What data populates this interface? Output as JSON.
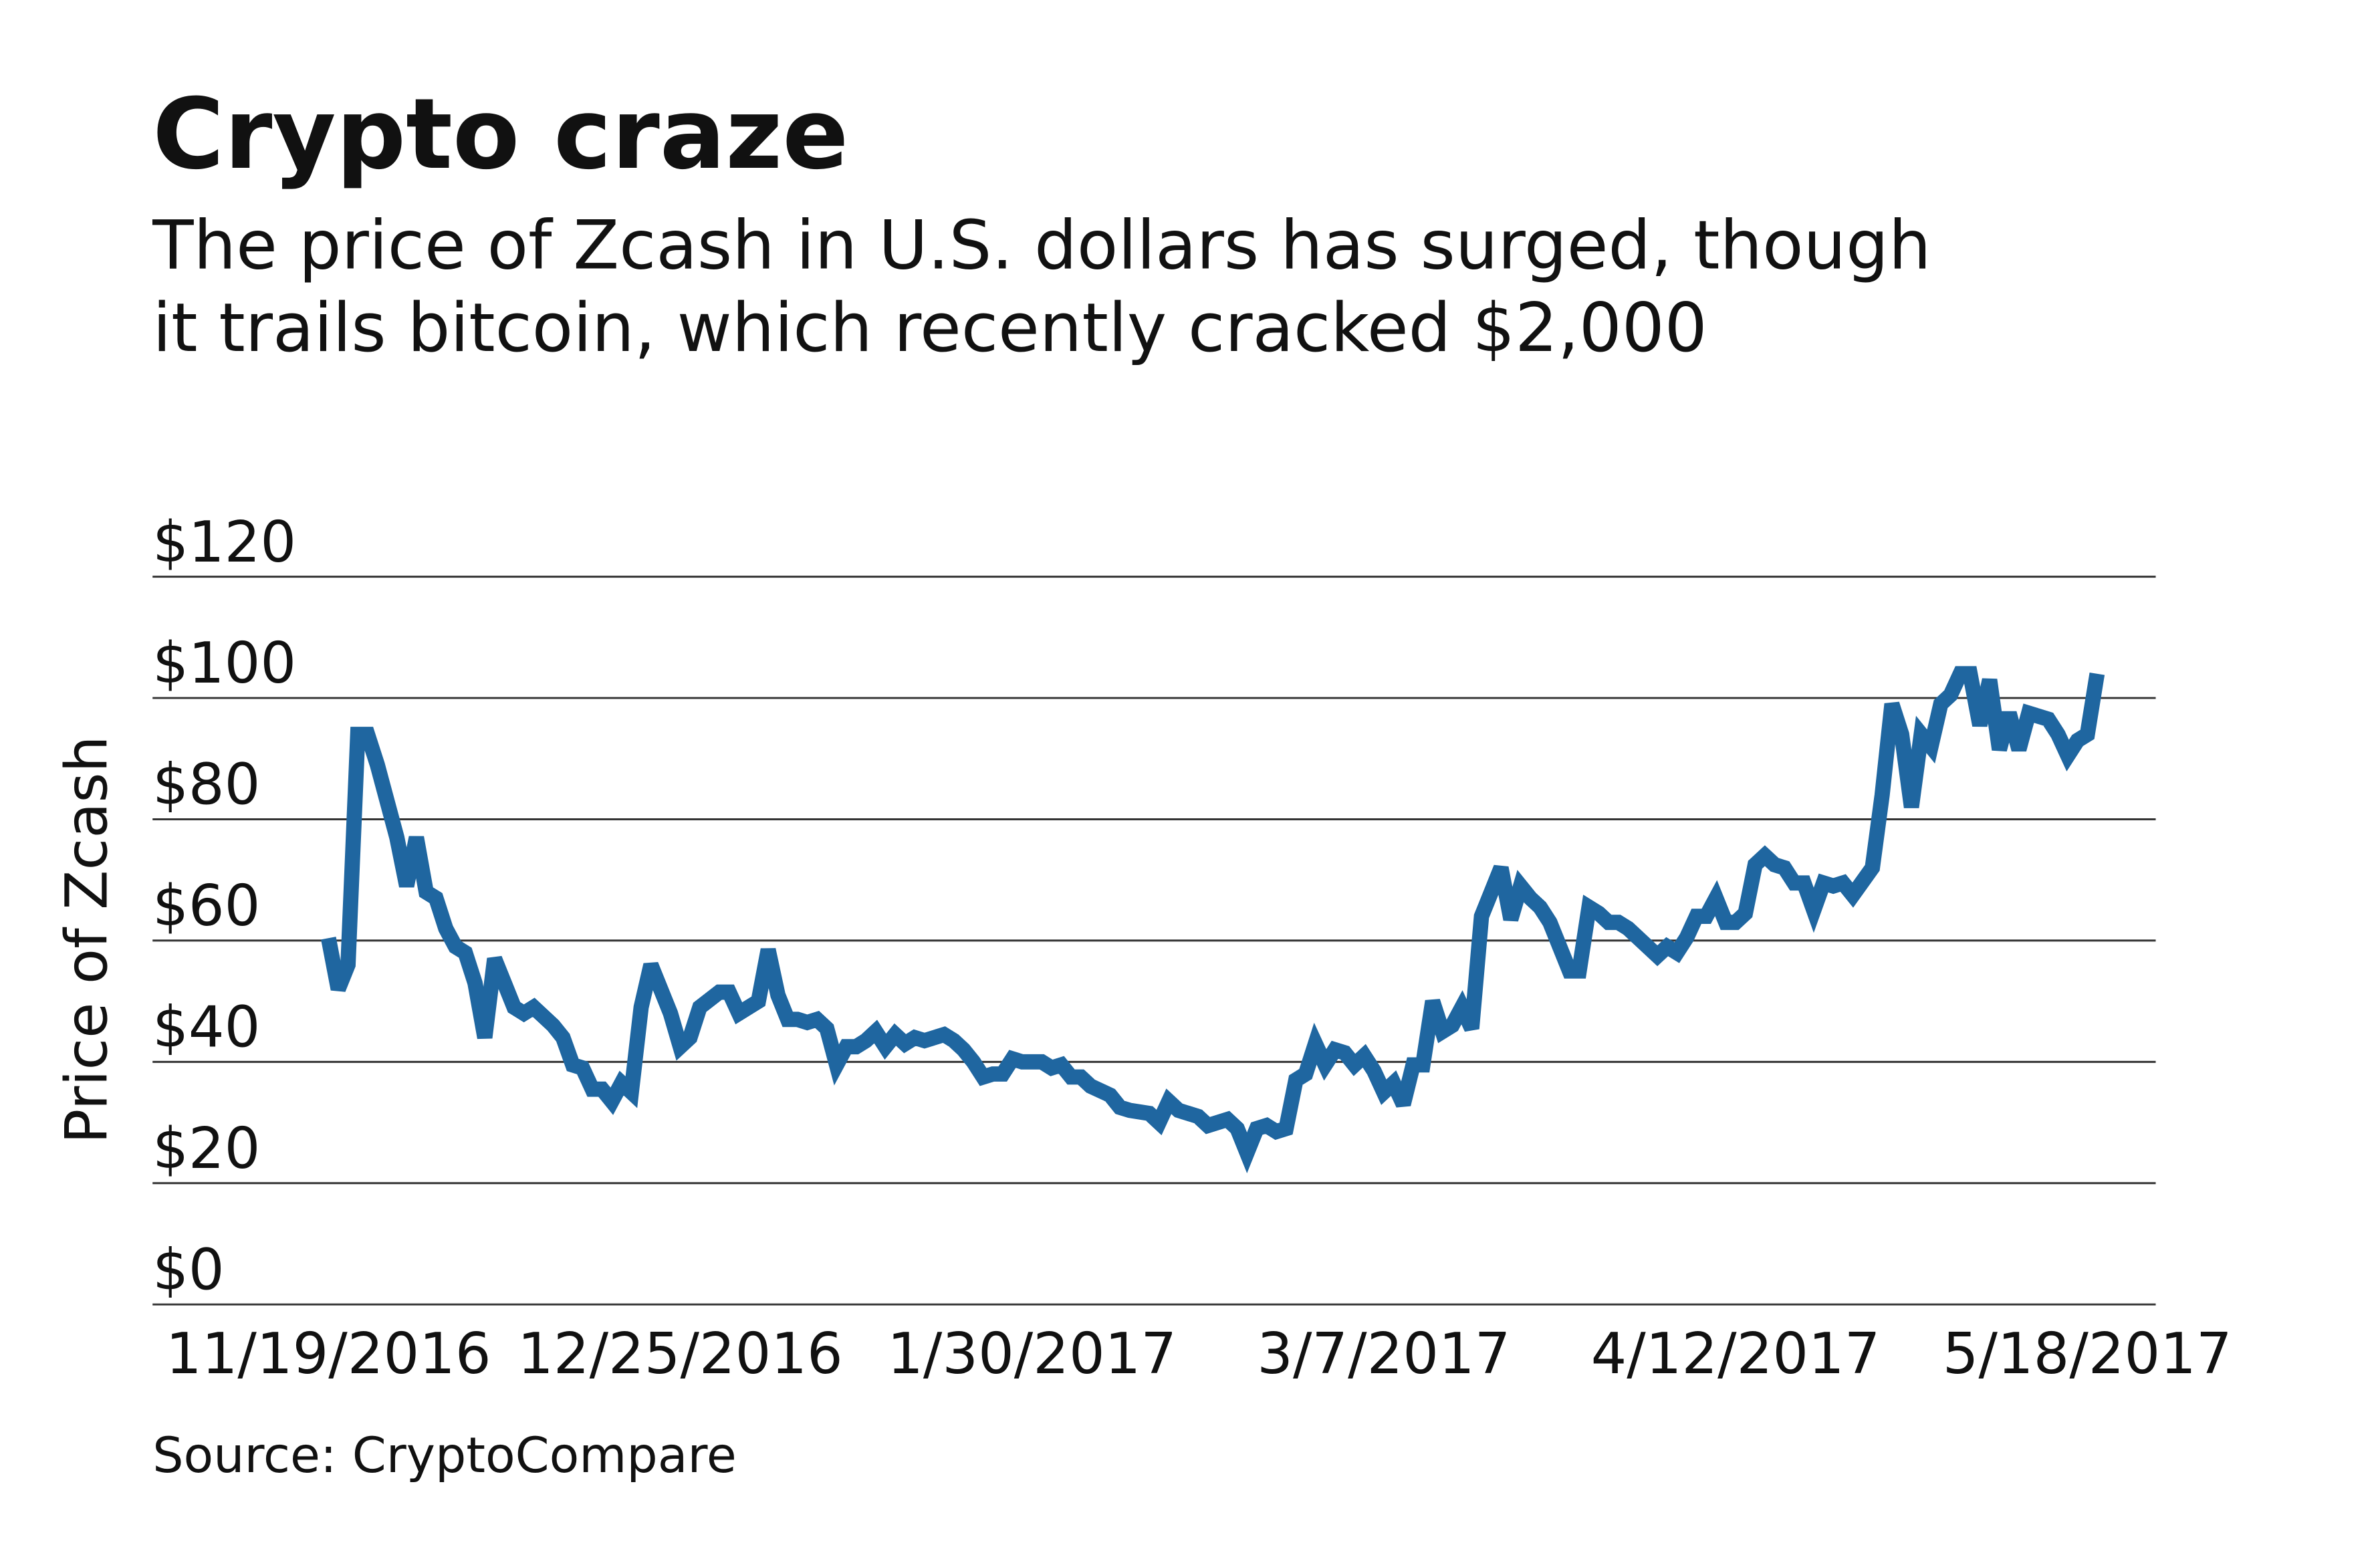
{
  "chart_data": {
    "type": "line",
    "title": "Crypto craze",
    "subtitle": [
      "The price of Zcash in U.S. dollars has surged, though",
      "it trails bitcoin, which recently cracked $2,000"
    ],
    "y_label": "Price of Zcash",
    "source": "Source: CryptoCompare",
    "color": "#1f66a0",
    "grid": true,
    "xlim": [
      "2016-11-01",
      "2017-05-25"
    ],
    "xticks": [
      {
        "value": "2016-11-19",
        "label": "11/19/2016"
      },
      {
        "value": "2016-12-25",
        "label": "12/25/2016"
      },
      {
        "value": "2017-01-30",
        "label": "1/30/2017"
      },
      {
        "value": "2017-03-07",
        "label": "3/7/2017"
      },
      {
        "value": "2017-04-12",
        "label": "4/12/2017"
      },
      {
        "value": "2017-05-18",
        "label": "5/18/2017"
      }
    ],
    "ylim": [
      0,
      120
    ],
    "yticks": [
      {
        "value": 0,
        "label": "$0"
      },
      {
        "value": 20,
        "label": "$20"
      },
      {
        "value": 40,
        "label": "$40"
      },
      {
        "value": 60,
        "label": "$60"
      },
      {
        "value": 80,
        "label": "$80"
      },
      {
        "value": 100,
        "label": "$100"
      },
      {
        "value": 120,
        "label": "$120"
      }
    ],
    "x": [
      "2016-11-19",
      "2016-11-20",
      "2016-11-21",
      "2016-11-22",
      "2016-11-23",
      "2016-11-24",
      "2016-11-26",
      "2016-11-27",
      "2016-11-28",
      "2016-11-29",
      "2016-11-30",
      "2016-12-01",
      "2016-12-02",
      "2016-12-03",
      "2016-12-04",
      "2016-12-05",
      "2016-12-06",
      "2016-12-07",
      "2016-12-08",
      "2016-12-09",
      "2016-12-10",
      "2016-12-12",
      "2016-12-13",
      "2016-12-14",
      "2016-12-15",
      "2016-12-16",
      "2016-12-17",
      "2016-12-18",
      "2016-12-19",
      "2016-12-20",
      "2016-12-21",
      "2016-12-22",
      "2016-12-24",
      "2016-12-25",
      "2016-12-26",
      "2016-12-27",
      "2016-12-29",
      "2016-12-30",
      "2016-12-31",
      "2017-01-01",
      "2017-01-02",
      "2017-01-03",
      "2017-01-04",
      "2017-01-05",
      "2017-01-06",
      "2017-01-07",
      "2017-01-08",
      "2017-01-09",
      "2017-01-10",
      "2017-01-11",
      "2017-01-12",
      "2017-01-13",
      "2017-01-14",
      "2017-01-15",
      "2017-01-16",
      "2017-01-17",
      "2017-01-18",
      "2017-01-19",
      "2017-01-21",
      "2017-01-22",
      "2017-01-23",
      "2017-01-24",
      "2017-01-25",
      "2017-01-26",
      "2017-01-27",
      "2017-01-28",
      "2017-01-29",
      "2017-01-31",
      "2017-02-01",
      "2017-02-02",
      "2017-02-03",
      "2017-02-04",
      "2017-02-05",
      "2017-02-07",
      "2017-02-08",
      "2017-02-09",
      "2017-02-11",
      "2017-02-12",
      "2017-02-13",
      "2017-02-14",
      "2017-02-16",
      "2017-02-17",
      "2017-02-19",
      "2017-02-20",
      "2017-02-21",
      "2017-02-22",
      "2017-02-23",
      "2017-02-24",
      "2017-02-25",
      "2017-02-26",
      "2017-02-27",
      "2017-02-28",
      "2017-03-01",
      "2017-03-02",
      "2017-03-03",
      "2017-03-04",
      "2017-03-05",
      "2017-03-06",
      "2017-03-07",
      "2017-03-08",
      "2017-03-09",
      "2017-03-10",
      "2017-03-11",
      "2017-03-12",
      "2017-03-13",
      "2017-03-14",
      "2017-03-15",
      "2017-03-16",
      "2017-03-17",
      "2017-03-18",
      "2017-03-19",
      "2017-03-20",
      "2017-03-21",
      "2017-03-22",
      "2017-03-23",
      "2017-03-24",
      "2017-03-26",
      "2017-03-27",
      "2017-03-28",
      "2017-03-29",
      "2017-03-30",
      "2017-03-31",
      "2017-04-01",
      "2017-04-02",
      "2017-04-03",
      "2017-04-04",
      "2017-04-05",
      "2017-04-06",
      "2017-04-07",
      "2017-04-08",
      "2017-04-09",
      "2017-04-10",
      "2017-04-11",
      "2017-04-12",
      "2017-04-13",
      "2017-04-14",
      "2017-04-15",
      "2017-04-16",
      "2017-04-17",
      "2017-04-18",
      "2017-04-19",
      "2017-04-20",
      "2017-04-21",
      "2017-04-22",
      "2017-04-23",
      "2017-04-24",
      "2017-04-26",
      "2017-04-27",
      "2017-04-28",
      "2017-04-29",
      "2017-04-30",
      "2017-05-01",
      "2017-05-02",
      "2017-05-03",
      "2017-05-04",
      "2017-05-05",
      "2017-05-06",
      "2017-05-07",
      "2017-05-08",
      "2017-05-09",
      "2017-05-10",
      "2017-05-11",
      "2017-05-12",
      "2017-05-13",
      "2017-05-14",
      "2017-05-15",
      "2017-05-16",
      "2017-05-17",
      "2017-05-18",
      "2017-05-19"
    ],
    "values": [
      60.4,
      52,
      56,
      94,
      94,
      89,
      77,
      69,
      77,
      68,
      67,
      62,
      59,
      58,
      53,
      44,
      57,
      53,
      49,
      48,
      49,
      46,
      44,
      39.5,
      39,
      35.5,
      35.5,
      33.5,
      36.5,
      35,
      49,
      56,
      48,
      42.5,
      44,
      49,
      51.5,
      51.5,
      48,
      49,
      50,
      58.5,
      51,
      47,
      47,
      46.5,
      47,
      45.5,
      39.5,
      42.5,
      42.5,
      43.5,
      45,
      42.5,
      44.5,
      43,
      44,
      43.5,
      44.5,
      43.5,
      42,
      40,
      37.5,
      38,
      38,
      40.5,
      40,
      40,
      39,
      39.5,
      37.5,
      37.5,
      36,
      34.5,
      32.5,
      32,
      31.5,
      30,
      33.5,
      32,
      31,
      29.5,
      30.5,
      29,
      25,
      29,
      29.5,
      28.5,
      29,
      37,
      38,
      43,
      39.5,
      42,
      41.5,
      39.5,
      41,
      38.5,
      35,
      36.5,
      33,
      39.5,
      39.5,
      50,
      45,
      46,
      49,
      45.5,
      64,
      68,
      72,
      63.5,
      69,
      67,
      65.5,
      63,
      55,
      55,
      65.5,
      64.5,
      63,
      63,
      62,
      60.5,
      59,
      57.5,
      59,
      58,
      60.5,
      64,
      64,
      67,
      63,
      63,
      64.5,
      72.5,
      74,
      72.5,
      72,
      69.5,
      69.5,
      65,
      69.5,
      69,
      69.5,
      67.5,
      72,
      84,
      99,
      94,
      82,
      94,
      92,
      99,
      100.5,
      104,
      104,
      95.5,
      103,
      91.5,
      97.5,
      91.5,
      97.5,
      97,
      96.5,
      94,
      90.5,
      93,
      94,
      104
    ]
  }
}
